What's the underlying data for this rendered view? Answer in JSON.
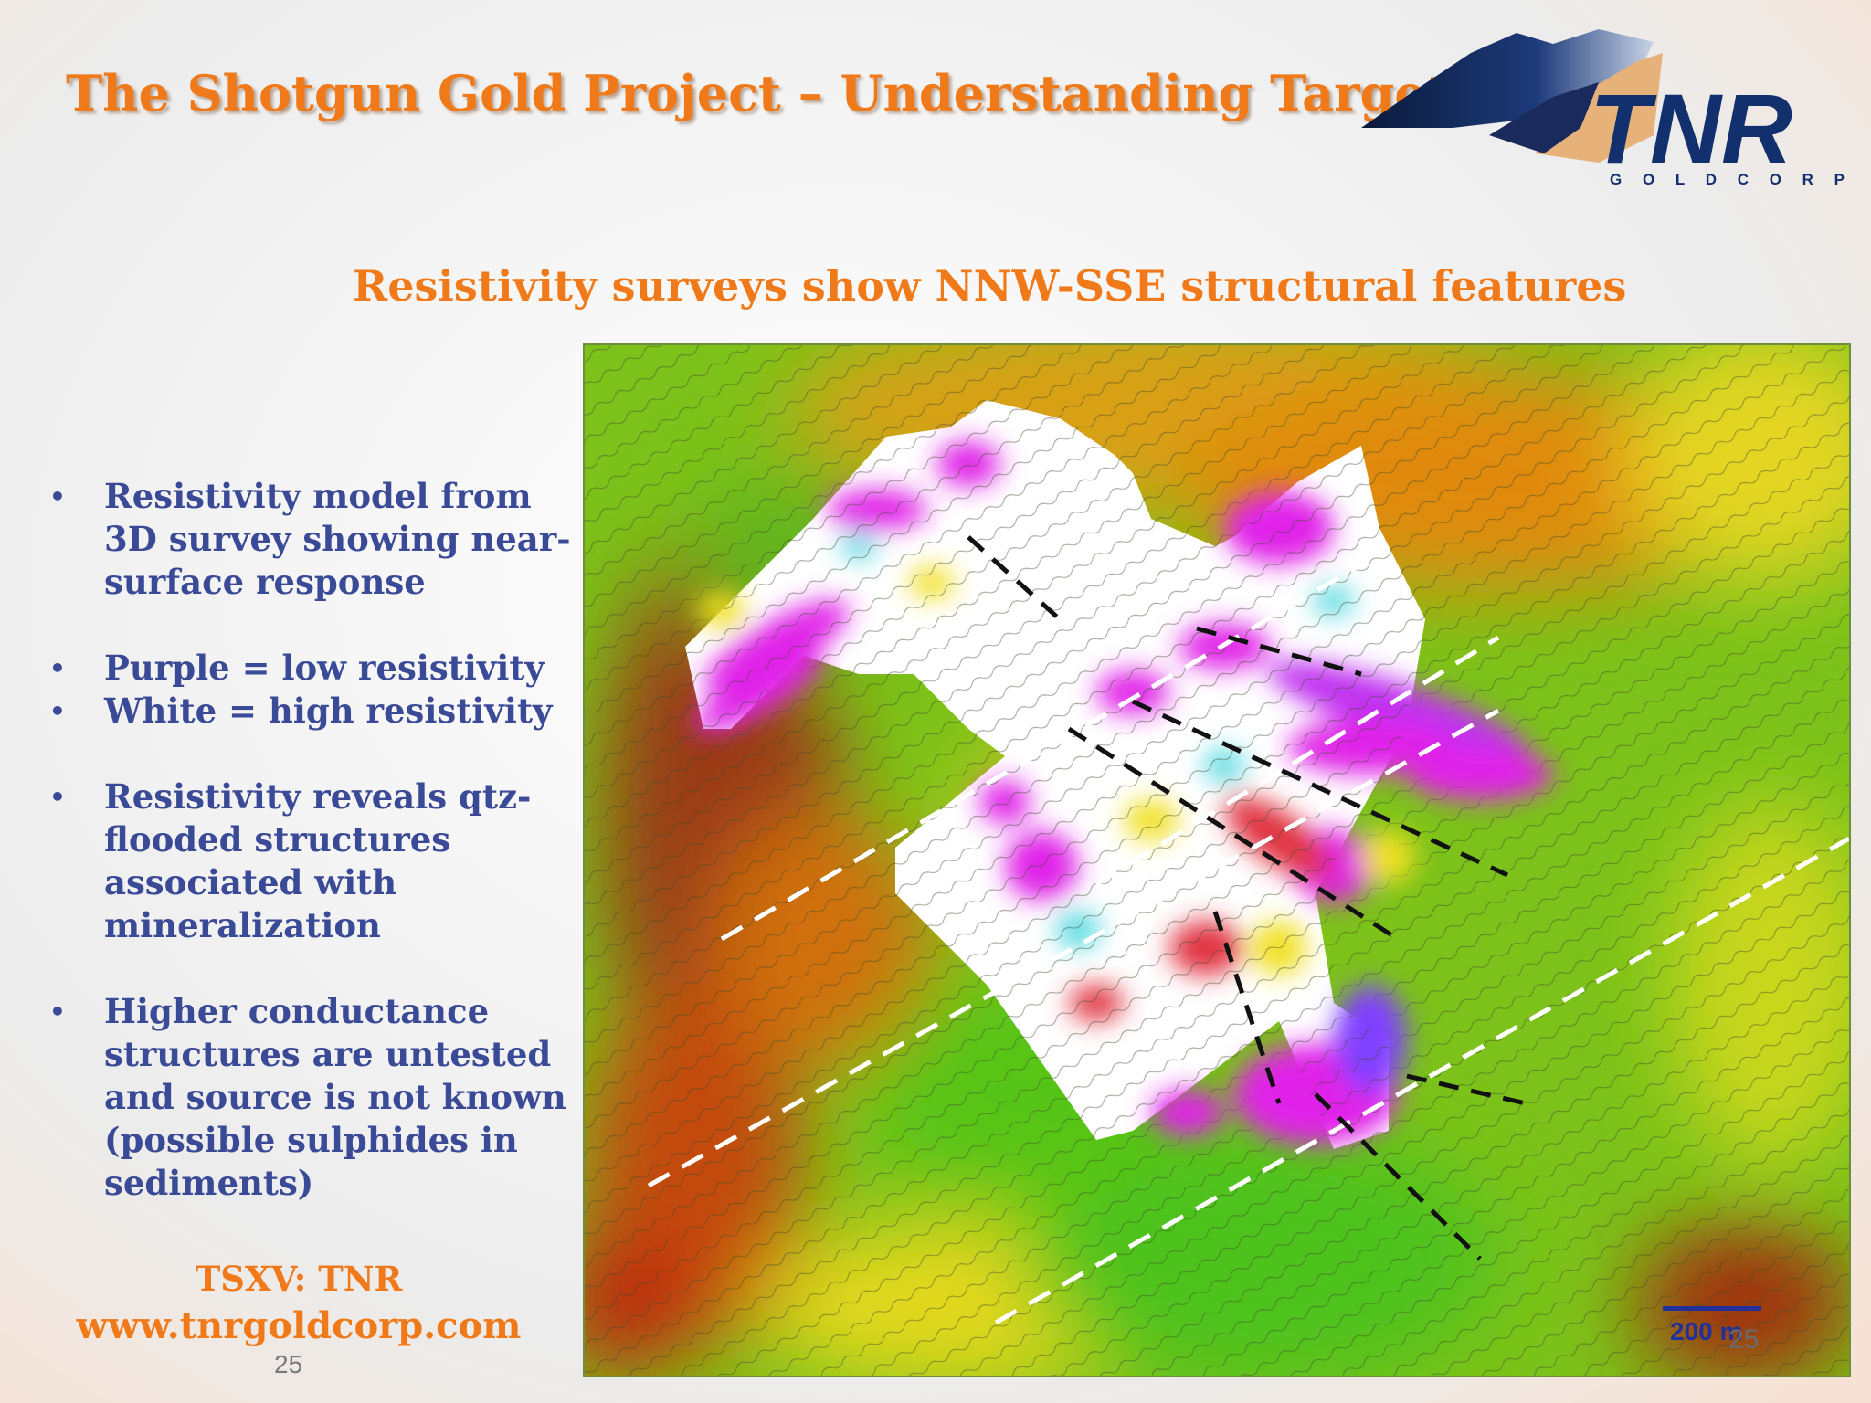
{
  "slide": {
    "title": "The Shotgun Gold Project – Understanding Targets",
    "subtitle": "Resistivity surveys show NNW-SSE structural features",
    "page_number": "25"
  },
  "logo": {
    "wordmark": "TNR",
    "tagline": "G O L D   C O R P"
  },
  "bullets": [
    "Resistivity model from 3D survey showing near-surface response",
    "Purple = low resistivity",
    "White = high resistivity",
    "Resistivity reveals qtz-flooded structures associated with mineralization",
    "Higher conductance structures are untested and source is not known (possible sulphides in sediments)"
  ],
  "footer": {
    "ticker": "TSXV: TNR",
    "url": "www.tnrgoldcorp.com"
  },
  "map": {
    "scale_label": "200 m",
    "colors": {
      "low_resistivity": "#e020e8",
      "high_resistivity": "#ffffff",
      "structure_white": "#ffffff",
      "structure_black": "#111111"
    }
  }
}
